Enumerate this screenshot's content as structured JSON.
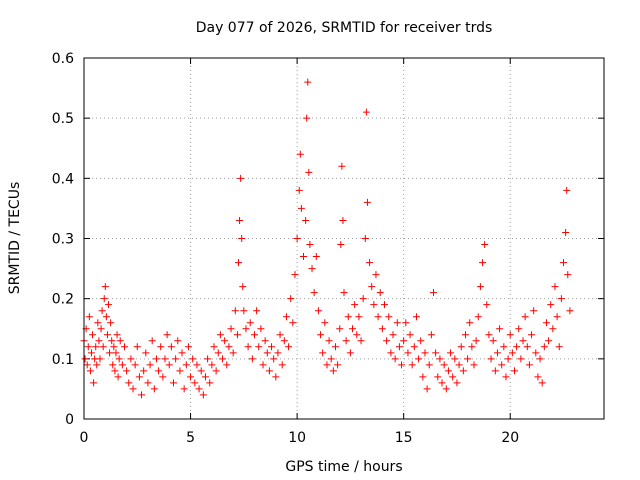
{
  "chart_data": {
    "type": "scatter",
    "title": "Day 077 of 2026, SRMTID for receiver trds",
    "xlabel": "GPS time / hours",
    "ylabel": "SRMTID / TECUs",
    "xlim": [
      0,
      24.4
    ],
    "ylim": [
      0,
      0.6
    ],
    "xticks": [
      0,
      5,
      10,
      15,
      20
    ],
    "xtick_labels": [
      "0",
      "5",
      "10",
      "15",
      "20"
    ],
    "yticks": [
      0,
      0.1,
      0.2,
      0.3,
      0.4,
      0.5,
      0.6
    ],
    "ytick_labels": [
      "0",
      "0.1",
      "0.2",
      "0.3",
      "0.4",
      "0.5",
      "0.6"
    ],
    "grid": true,
    "marker": "+",
    "color": "#ff0000",
    "series": [
      {
        "name": "SRMTID",
        "points": [
          [
            0.0,
            0.13
          ],
          [
            0.05,
            0.1
          ],
          [
            0.1,
            0.15
          ],
          [
            0.15,
            0.09
          ],
          [
            0.2,
            0.12
          ],
          [
            0.25,
            0.17
          ],
          [
            0.3,
            0.08
          ],
          [
            0.35,
            0.11
          ],
          [
            0.4,
            0.14
          ],
          [
            0.45,
            0.06
          ],
          [
            0.5,
            0.1
          ],
          [
            0.55,
            0.12
          ],
          [
            0.6,
            0.09
          ],
          [
            0.65,
            0.16
          ],
          [
            0.7,
            0.13
          ],
          [
            0.75,
            0.1
          ],
          [
            0.8,
            0.15
          ],
          [
            0.85,
            0.18
          ],
          [
            0.9,
            0.12
          ],
          [
            0.95,
            0.2
          ],
          [
            1.0,
            0.22
          ],
          [
            1.05,
            0.17
          ],
          [
            1.1,
            0.14
          ],
          [
            1.15,
            0.19
          ],
          [
            1.2,
            0.11
          ],
          [
            1.25,
            0.16
          ],
          [
            1.3,
            0.13
          ],
          [
            1.35,
            0.09
          ],
          [
            1.4,
            0.12
          ],
          [
            1.45,
            0.08
          ],
          [
            1.5,
            0.11
          ],
          [
            1.55,
            0.14
          ],
          [
            1.6,
            0.07
          ],
          [
            1.65,
            0.1
          ],
          [
            1.7,
            0.13
          ],
          [
            1.8,
            0.09
          ],
          [
            1.9,
            0.12
          ],
          [
            2.0,
            0.08
          ],
          [
            2.1,
            0.06
          ],
          [
            2.2,
            0.1
          ],
          [
            2.3,
            0.05
          ],
          [
            2.4,
            0.09
          ],
          [
            2.5,
            0.12
          ],
          [
            2.6,
            0.07
          ],
          [
            2.7,
            0.04
          ],
          [
            2.8,
            0.08
          ],
          [
            2.9,
            0.11
          ],
          [
            3.0,
            0.06
          ],
          [
            3.1,
            0.09
          ],
          [
            3.2,
            0.13
          ],
          [
            3.3,
            0.05
          ],
          [
            3.4,
            0.1
          ],
          [
            3.5,
            0.08
          ],
          [
            3.6,
            0.12
          ],
          [
            3.7,
            0.07
          ],
          [
            3.8,
            0.1
          ],
          [
            3.9,
            0.14
          ],
          [
            4.0,
            0.09
          ],
          [
            4.1,
            0.12
          ],
          [
            4.2,
            0.06
          ],
          [
            4.3,
            0.1
          ],
          [
            4.4,
            0.13
          ],
          [
            4.5,
            0.08
          ],
          [
            4.6,
            0.11
          ],
          [
            4.7,
            0.05
          ],
          [
            4.8,
            0.09
          ],
          [
            4.9,
            0.12
          ],
          [
            5.0,
            0.07
          ],
          [
            5.1,
            0.1
          ],
          [
            5.2,
            0.06
          ],
          [
            5.3,
            0.09
          ],
          [
            5.4,
            0.05
          ],
          [
            5.5,
            0.08
          ],
          [
            5.6,
            0.04
          ],
          [
            5.7,
            0.07
          ],
          [
            5.8,
            0.1
          ],
          [
            5.9,
            0.06
          ],
          [
            6.0,
            0.09
          ],
          [
            6.1,
            0.12
          ],
          [
            6.2,
            0.08
          ],
          [
            6.3,
            0.11
          ],
          [
            6.4,
            0.14
          ],
          [
            6.5,
            0.1
          ],
          [
            6.6,
            0.13
          ],
          [
            6.7,
            0.09
          ],
          [
            6.8,
            0.12
          ],
          [
            6.9,
            0.15
          ],
          [
            7.0,
            0.11
          ],
          [
            7.1,
            0.18
          ],
          [
            7.2,
            0.14
          ],
          [
            7.25,
            0.26
          ],
          [
            7.3,
            0.33
          ],
          [
            7.35,
            0.4
          ],
          [
            7.4,
            0.3
          ],
          [
            7.45,
            0.22
          ],
          [
            7.5,
            0.18
          ],
          [
            7.6,
            0.15
          ],
          [
            7.7,
            0.12
          ],
          [
            7.8,
            0.16
          ],
          [
            7.9,
            0.1
          ],
          [
            8.0,
            0.14
          ],
          [
            8.1,
            0.18
          ],
          [
            8.2,
            0.12
          ],
          [
            8.3,
            0.15
          ],
          [
            8.4,
            0.09
          ],
          [
            8.5,
            0.13
          ],
          [
            8.6,
            0.11
          ],
          [
            8.7,
            0.08
          ],
          [
            8.8,
            0.12
          ],
          [
            8.9,
            0.1
          ],
          [
            9.0,
            0.07
          ],
          [
            9.1,
            0.11
          ],
          [
            9.2,
            0.14
          ],
          [
            9.3,
            0.09
          ],
          [
            9.4,
            0.13
          ],
          [
            9.5,
            0.17
          ],
          [
            9.6,
            0.12
          ],
          [
            9.7,
            0.2
          ],
          [
            9.8,
            0.16
          ],
          [
            9.9,
            0.24
          ],
          [
            10.0,
            0.3
          ],
          [
            10.1,
            0.38
          ],
          [
            10.15,
            0.44
          ],
          [
            10.2,
            0.35
          ],
          [
            10.3,
            0.27
          ],
          [
            10.4,
            0.33
          ],
          [
            10.45,
            0.5
          ],
          [
            10.5,
            0.56
          ],
          [
            10.55,
            0.41
          ],
          [
            10.6,
            0.29
          ],
          [
            10.7,
            0.25
          ],
          [
            10.8,
            0.21
          ],
          [
            10.9,
            0.27
          ],
          [
            11.0,
            0.18
          ],
          [
            11.1,
            0.14
          ],
          [
            11.2,
            0.11
          ],
          [
            11.3,
            0.16
          ],
          [
            11.4,
            0.09
          ],
          [
            11.5,
            0.13
          ],
          [
            11.6,
            0.1
          ],
          [
            11.7,
            0.08
          ],
          [
            11.8,
            0.12
          ],
          [
            11.9,
            0.09
          ],
          [
            12.0,
            0.15
          ],
          [
            12.05,
            0.29
          ],
          [
            12.1,
            0.42
          ],
          [
            12.15,
            0.33
          ],
          [
            12.2,
            0.21
          ],
          [
            12.3,
            0.13
          ],
          [
            12.4,
            0.17
          ],
          [
            12.5,
            0.11
          ],
          [
            12.6,
            0.15
          ],
          [
            12.7,
            0.19
          ],
          [
            12.8,
            0.14
          ],
          [
            12.9,
            0.17
          ],
          [
            13.0,
            0.13
          ],
          [
            13.1,
            0.2
          ],
          [
            13.2,
            0.3
          ],
          [
            13.25,
            0.51
          ],
          [
            13.3,
            0.36
          ],
          [
            13.4,
            0.26
          ],
          [
            13.5,
            0.22
          ],
          [
            13.6,
            0.19
          ],
          [
            13.7,
            0.24
          ],
          [
            13.8,
            0.17
          ],
          [
            13.9,
            0.21
          ],
          [
            14.0,
            0.15
          ],
          [
            14.1,
            0.19
          ],
          [
            14.2,
            0.13
          ],
          [
            14.3,
            0.17
          ],
          [
            14.4,
            0.11
          ],
          [
            14.5,
            0.14
          ],
          [
            14.6,
            0.1
          ],
          [
            14.7,
            0.16
          ],
          [
            14.8,
            0.12
          ],
          [
            14.9,
            0.09
          ],
          [
            15.0,
            0.13
          ],
          [
            15.1,
            0.16
          ],
          [
            15.2,
            0.11
          ],
          [
            15.3,
            0.14
          ],
          [
            15.4,
            0.09
          ],
          [
            15.5,
            0.12
          ],
          [
            15.6,
            0.17
          ],
          [
            15.7,
            0.1
          ],
          [
            15.8,
            0.13
          ],
          [
            15.9,
            0.07
          ],
          [
            16.0,
            0.11
          ],
          [
            16.1,
            0.05
          ],
          [
            16.2,
            0.09
          ],
          [
            16.3,
            0.14
          ],
          [
            16.4,
            0.21
          ],
          [
            16.5,
            0.11
          ],
          [
            16.6,
            0.07
          ],
          [
            16.7,
            0.1
          ],
          [
            16.8,
            0.06
          ],
          [
            16.9,
            0.09
          ],
          [
            17.0,
            0.05
          ],
          [
            17.1,
            0.08
          ],
          [
            17.2,
            0.11
          ],
          [
            17.3,
            0.07
          ],
          [
            17.4,
            0.1
          ],
          [
            17.5,
            0.06
          ],
          [
            17.6,
            0.09
          ],
          [
            17.7,
            0.12
          ],
          [
            17.8,
            0.08
          ],
          [
            17.9,
            0.14
          ],
          [
            18.0,
            0.1
          ],
          [
            18.1,
            0.16
          ],
          [
            18.2,
            0.12
          ],
          [
            18.3,
            0.09
          ],
          [
            18.4,
            0.13
          ],
          [
            18.5,
            0.17
          ],
          [
            18.6,
            0.22
          ],
          [
            18.7,
            0.26
          ],
          [
            18.8,
            0.29
          ],
          [
            18.9,
            0.19
          ],
          [
            19.0,
            0.14
          ],
          [
            19.1,
            0.1
          ],
          [
            19.2,
            0.13
          ],
          [
            19.3,
            0.08
          ],
          [
            19.4,
            0.11
          ],
          [
            19.5,
            0.15
          ],
          [
            19.6,
            0.09
          ],
          [
            19.7,
            0.12
          ],
          [
            19.8,
            0.07
          ],
          [
            19.9,
            0.1
          ],
          [
            20.0,
            0.14
          ],
          [
            20.1,
            0.11
          ],
          [
            20.2,
            0.08
          ],
          [
            20.3,
            0.12
          ],
          [
            20.4,
            0.15
          ],
          [
            20.5,
            0.1
          ],
          [
            20.6,
            0.13
          ],
          [
            20.7,
            0.17
          ],
          [
            20.8,
            0.12
          ],
          [
            20.9,
            0.09
          ],
          [
            21.0,
            0.14
          ],
          [
            21.1,
            0.18
          ],
          [
            21.2,
            0.11
          ],
          [
            21.3,
            0.07
          ],
          [
            21.4,
            0.1
          ],
          [
            21.5,
            0.06
          ],
          [
            21.6,
            0.12
          ],
          [
            21.7,
            0.16
          ],
          [
            21.8,
            0.13
          ],
          [
            21.9,
            0.19
          ],
          [
            22.0,
            0.15
          ],
          [
            22.1,
            0.22
          ],
          [
            22.2,
            0.17
          ],
          [
            22.3,
            0.12
          ],
          [
            22.4,
            0.2
          ],
          [
            22.5,
            0.26
          ],
          [
            22.6,
            0.31
          ],
          [
            22.65,
            0.38
          ],
          [
            22.7,
            0.24
          ],
          [
            22.8,
            0.18
          ]
        ]
      }
    ]
  }
}
